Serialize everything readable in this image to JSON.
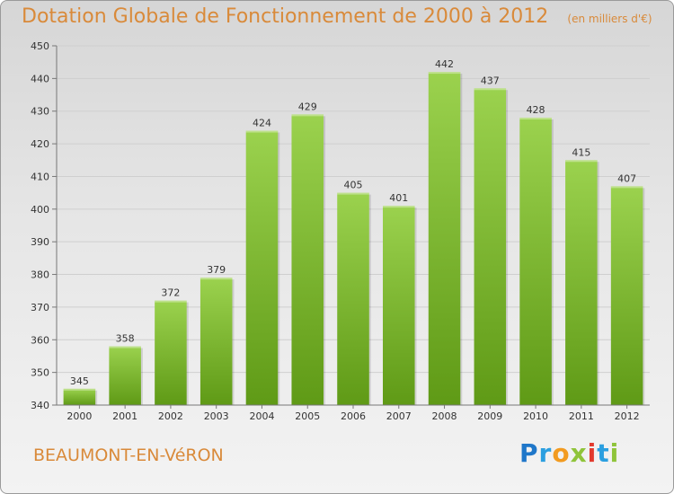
{
  "header": {
    "title": "Dotation Globale de Fonctionnement de 2000 à 2012",
    "unit": "(en milliers d'€)"
  },
  "footer": {
    "commune": "BEAUMONT-EN-VéRON",
    "brand_letters": [
      {
        "ch": "P",
        "color": "#1f77c9"
      },
      {
        "ch": "r",
        "color": "#2b9fe0"
      },
      {
        "ch": "o",
        "color": "#f29b20"
      },
      {
        "ch": "x",
        "color": "#8fc43a"
      },
      {
        "ch": "i",
        "color": "#e23a2e"
      },
      {
        "ch": "t",
        "color": "#2b9fe0"
      },
      {
        "ch": "i",
        "color": "#8fc43a"
      }
    ]
  },
  "chart_data": {
    "type": "bar",
    "categories": [
      "2000",
      "2001",
      "2002",
      "2003",
      "2004",
      "2005",
      "2006",
      "2007",
      "2008",
      "2009",
      "2010",
      "2011",
      "2012"
    ],
    "values": [
      345,
      358,
      372,
      379,
      424,
      429,
      405,
      401,
      442,
      437,
      428,
      415,
      407
    ],
    "ylim": [
      340,
      450
    ],
    "yticks": [
      340,
      350,
      360,
      370,
      380,
      390,
      400,
      410,
      420,
      430,
      440,
      450
    ],
    "grid": true,
    "bar_color_top": "#9bd24e",
    "bar_color_bottom": "#5f9a16",
    "text_color": "#d98a3a"
  }
}
